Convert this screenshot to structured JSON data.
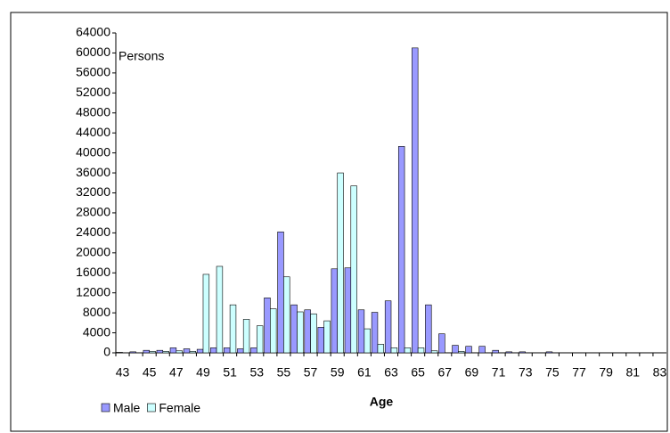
{
  "chart_data": {
    "type": "bar",
    "annotation": "Persons",
    "x_label": "Age",
    "categories": [
      "43",
      null,
      "45",
      null,
      "47",
      null,
      "49",
      null,
      "51",
      null,
      "53",
      null,
      "55",
      null,
      "57",
      null,
      "59",
      null,
      "61",
      null,
      "63",
      null,
      "65",
      null,
      "67",
      null,
      "69",
      null,
      "71",
      null,
      "73",
      null,
      "75",
      null,
      "77",
      null,
      "79",
      null,
      "81",
      null,
      "83"
    ],
    "series": [
      {
        "name": "Male",
        "color": "#9999ff",
        "values": [
          100,
          200,
          500,
          500,
          1000,
          800,
          700,
          1000,
          1000,
          800,
          1000,
          11000,
          24200,
          9600,
          8600,
          5100,
          16800,
          17000,
          8600,
          8100,
          10400,
          41300,
          61000,
          9600,
          3800,
          1500,
          1300,
          1300,
          500,
          200,
          200,
          0,
          200,
          0,
          0,
          0,
          0,
          0,
          0,
          0,
          0
        ]
      },
      {
        "name": "Female",
        "color": "#ccffff",
        "values": [
          0,
          0,
          300,
          300,
          400,
          300,
          15700,
          17300,
          9600,
          6700,
          5400,
          8800,
          15200,
          8200,
          7800,
          6400,
          36000,
          33400,
          4800,
          1700,
          1000,
          1000,
          1000,
          400,
          0,
          300,
          0,
          0,
          0,
          0,
          0,
          0,
          0,
          0,
          0,
          0,
          0,
          0,
          0,
          0,
          0
        ]
      }
    ],
    "ylim": [
      0,
      64000
    ],
    "yticks": [
      0,
      4000,
      8000,
      12000,
      16000,
      20000,
      24000,
      28000,
      32000,
      36000,
      40000,
      44000,
      48000,
      52000,
      56000,
      60000,
      64000
    ],
    "grid": false,
    "legend": "bottom-left"
  }
}
